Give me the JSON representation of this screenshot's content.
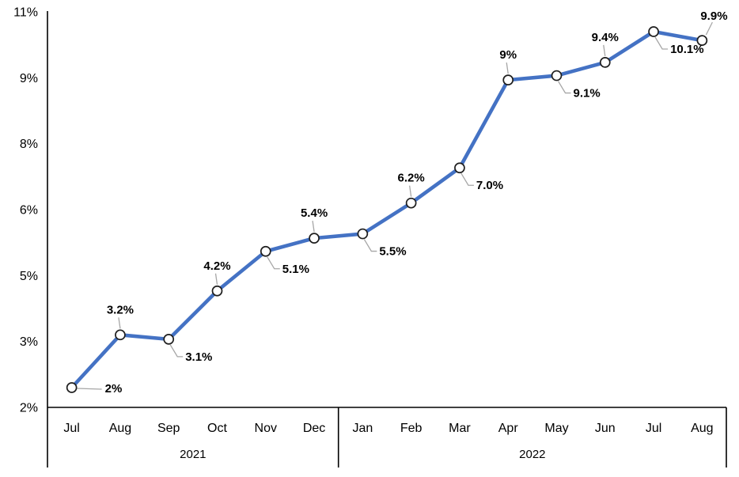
{
  "chart_data": {
    "type": "line",
    "title": "",
    "legend": "none",
    "categories": [
      "Jul",
      "Aug",
      "Sep",
      "Oct",
      "Nov",
      "Dec",
      "Jan",
      "Feb",
      "Mar",
      "Apr",
      "May",
      "Jun",
      "Jul",
      "Aug"
    ],
    "year_groups": [
      {
        "label": "2021",
        "months": 6
      },
      {
        "label": "2022",
        "months": 8
      }
    ],
    "values": [
      2.0,
      3.2,
      3.1,
      4.2,
      5.1,
      5.4,
      5.5,
      6.2,
      7.0,
      9.0,
      9.1,
      9.4,
      10.1,
      9.9
    ],
    "point_labels": [
      "2%",
      "3.2%",
      "3.1%",
      "4.2%",
      "5.1%",
      "5.4%",
      "5.5%",
      "6.2%",
      "7.0%",
      "9%",
      "9.1%",
      "9.4%",
      "10.1%",
      "9.9%"
    ],
    "label_placements": [
      "right",
      "above",
      "below",
      "above",
      "below",
      "above",
      "below",
      "above",
      "below",
      "above",
      "below",
      "above",
      "below",
      "above-right"
    ],
    "y_axis": {
      "tick_labels_top_to_bottom": [
        "11%",
        "9%",
        "8%",
        "6%",
        "5%",
        "3%",
        "2%"
      ],
      "min": 1.55,
      "max": 10.55,
      "gridlines": false
    },
    "colors": {
      "line": "#4472C4",
      "marker_fill": "#FFFFFF",
      "marker_stroke": "#1F1F1F",
      "leader": "#A6A6A6",
      "axis": "#000000",
      "text": "#000000"
    }
  }
}
